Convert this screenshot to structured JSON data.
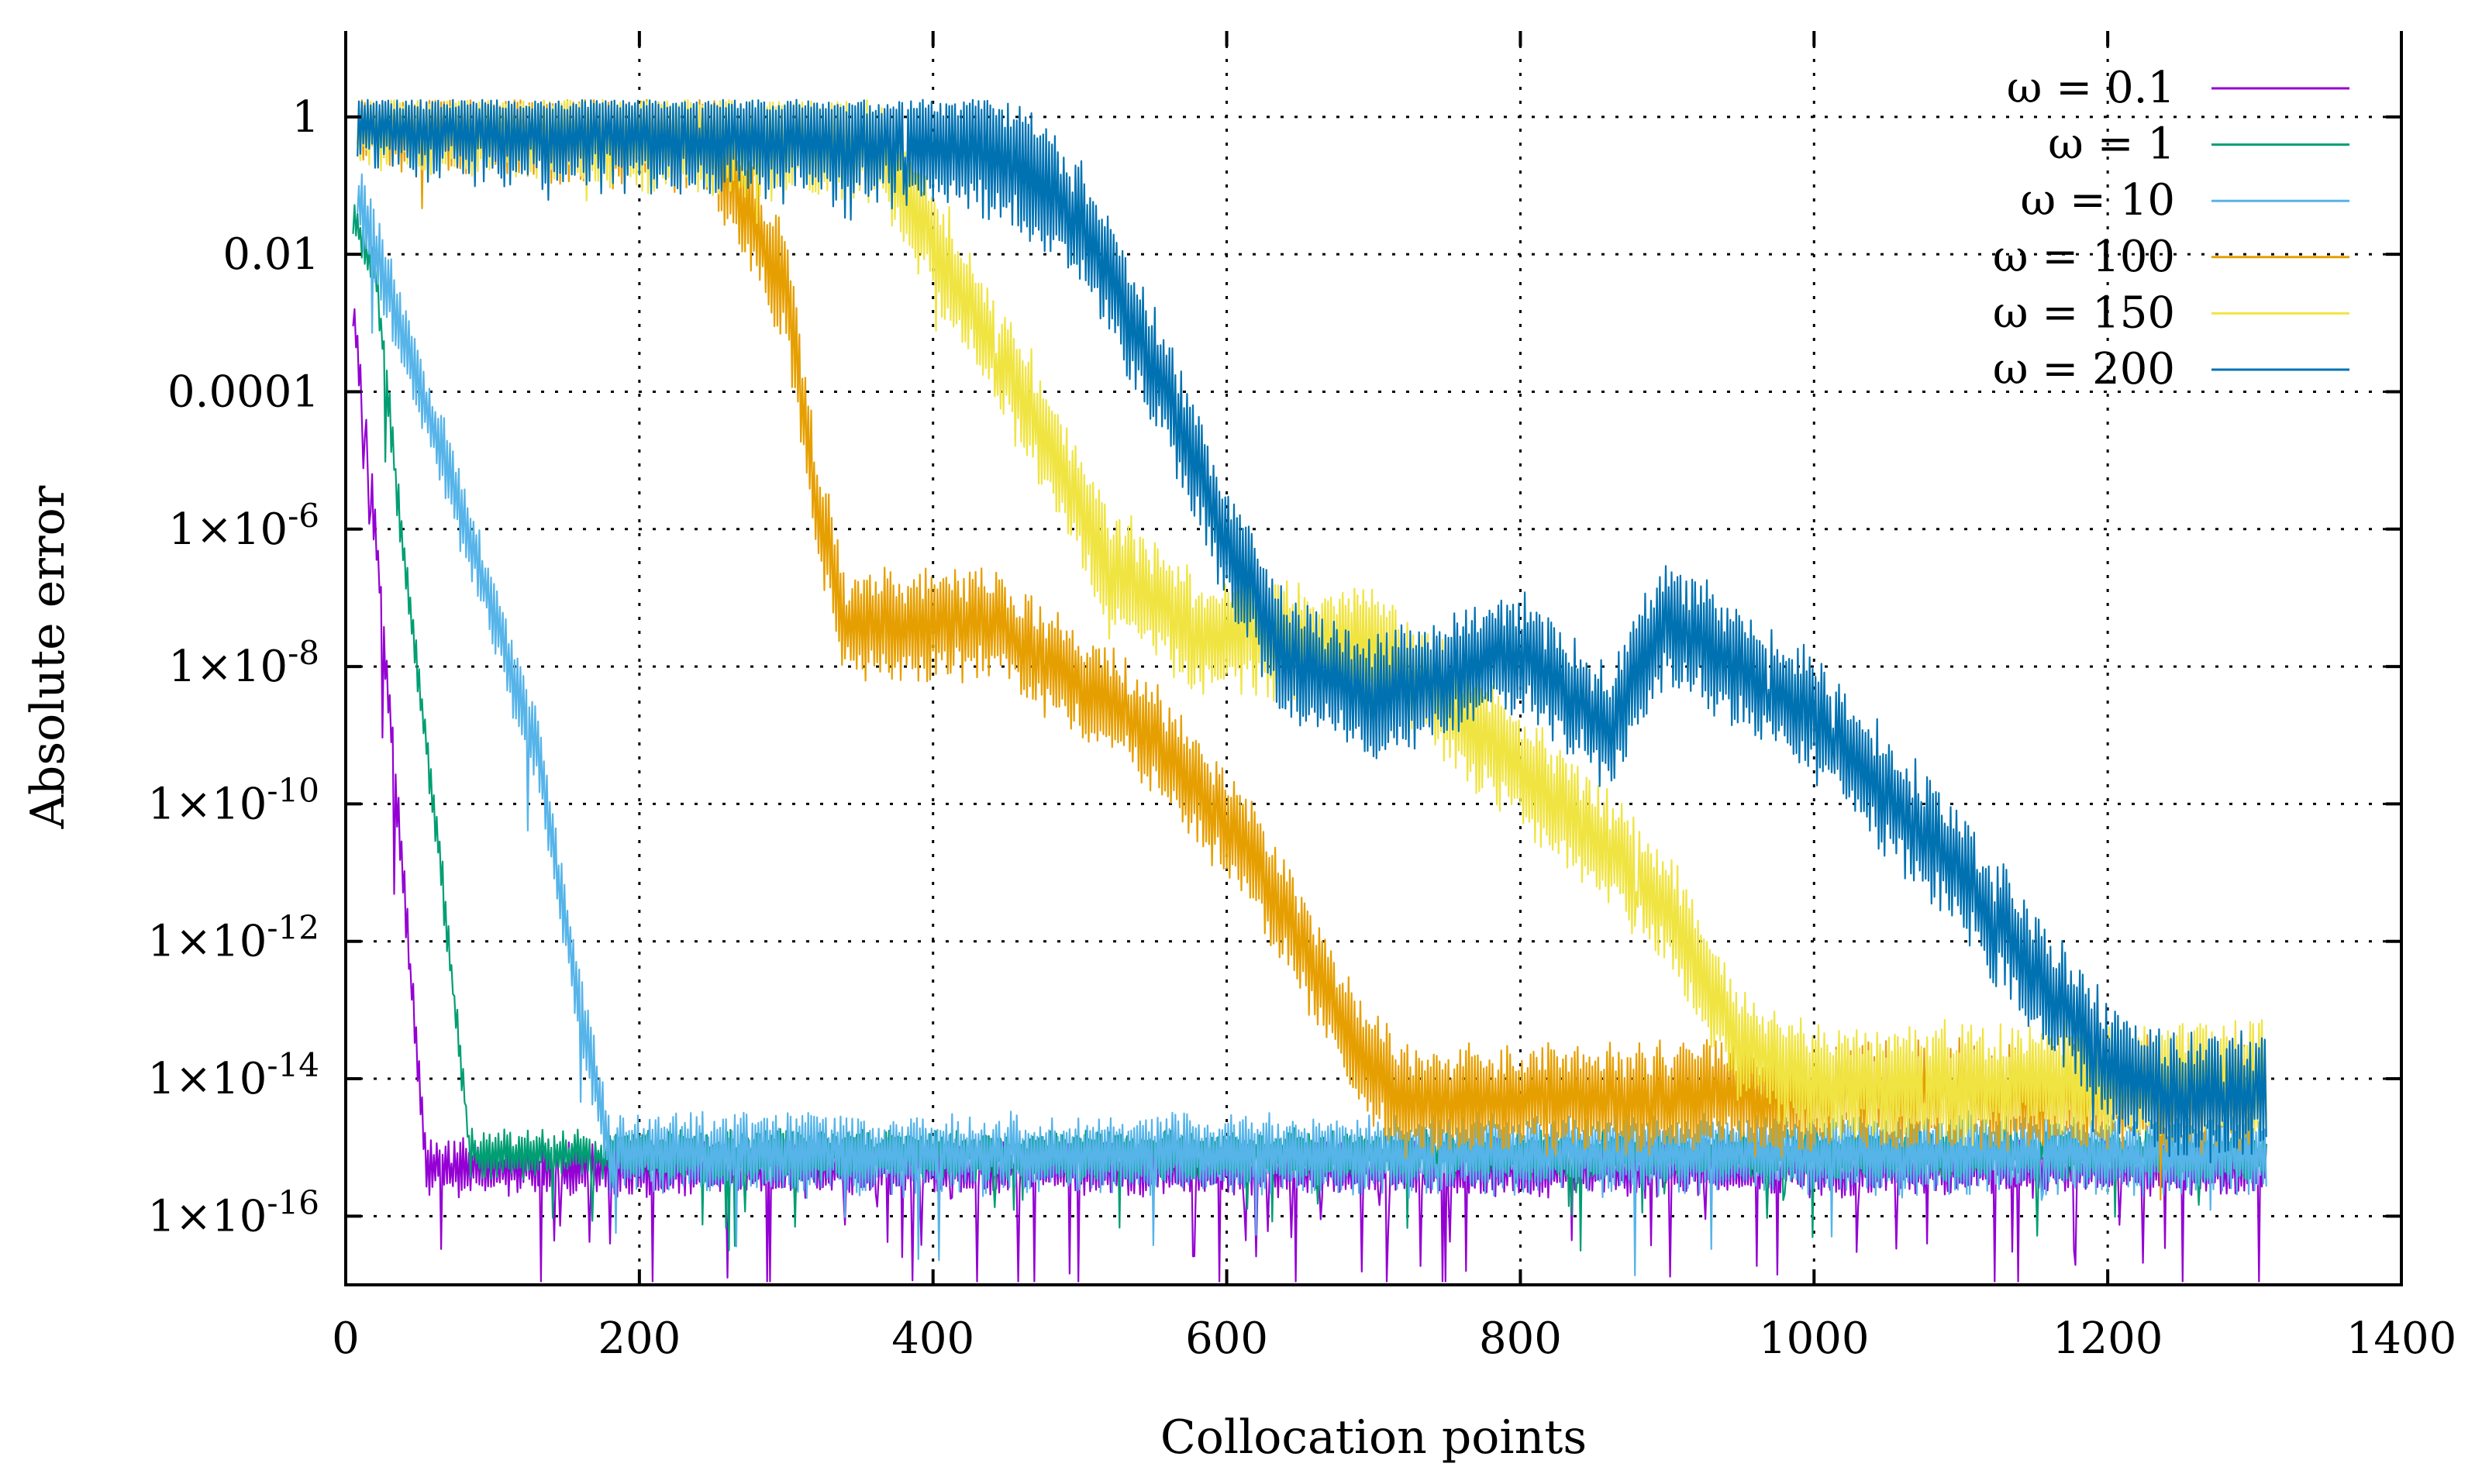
{
  "chart_data": {
    "type": "line",
    "title": "",
    "xlabel": "Collocation points",
    "ylabel": "Absolute error",
    "xlim": [
      0,
      1400
    ],
    "ylim_log10": [
      -17,
      1.25
    ],
    "yscale": "log",
    "grid": true,
    "legend_position": "top-right",
    "x_ticks": [
      {
        "value": 0,
        "label": "0"
      },
      {
        "value": 200,
        "label": "200"
      },
      {
        "value": 400,
        "label": "400"
      },
      {
        "value": 600,
        "label": "600"
      },
      {
        "value": 800,
        "label": "800"
      },
      {
        "value": 1000,
        "label": "1000"
      },
      {
        "value": 1200,
        "label": "1200"
      },
      {
        "value": 1400,
        "label": "1400"
      }
    ],
    "y_ticks": [
      {
        "log10": 0,
        "base": "1",
        "exp": ""
      },
      {
        "log10": -2,
        "base": "0.01",
        "exp": ""
      },
      {
        "log10": -4,
        "base": "0.0001",
        "exp": ""
      },
      {
        "log10": -6,
        "base": "1×10",
        "exp": "-6"
      },
      {
        "log10": -8,
        "base": "1×10",
        "exp": "-8"
      },
      {
        "log10": -10,
        "base": "1×10",
        "exp": "-10"
      },
      {
        "log10": -12,
        "base": "1×10",
        "exp": "-12"
      },
      {
        "log10": -14,
        "base": "1×10",
        "exp": "-14"
      },
      {
        "log10": -16,
        "base": "1×10",
        "exp": "-16"
      }
    ],
    "series": [
      {
        "name": "ω = 0.1",
        "color": "#9400d3",
        "x_end": 1308,
        "envelope": [
          [
            5,
            -2.8
          ],
          [
            20,
            -6
          ],
          [
            35,
            -10
          ],
          [
            50,
            -14
          ],
          [
            55,
            -15.3
          ],
          [
            1308,
            -15.3
          ]
        ],
        "noise_amp": 0.35,
        "dip_prob": 0.3,
        "dip_depth": 1.3,
        "seed": 11
      },
      {
        "name": "ω = 1",
        "color": "#009e73",
        "x_end": 1308,
        "envelope": [
          [
            5,
            -1.5
          ],
          [
            20,
            -2.2
          ],
          [
            40,
            -6.5
          ],
          [
            60,
            -10
          ],
          [
            85,
            -15.1
          ],
          [
            1308,
            -15.1
          ]
        ],
        "noise_amp": 0.3,
        "dip_prob": 0.12,
        "dip_depth": 0.8,
        "seed": 23
      },
      {
        "name": "ω = 10",
        "color": "#56b4e9",
        "x_end": 1308,
        "envelope": [
          [
            8,
            -1.1
          ],
          [
            15,
            -1.6
          ],
          [
            60,
            -4.5
          ],
          [
            90,
            -6.5
          ],
          [
            130,
            -9.2
          ],
          [
            160,
            -13
          ],
          [
            180,
            -15.1
          ],
          [
            1308,
            -15.1
          ]
        ],
        "noise_amp": 0.55,
        "dip_prob": 0.12,
        "dip_depth": 0.8,
        "seed": 37
      },
      {
        "name": "ω = 100",
        "color": "#e69f00",
        "x_end": 1308,
        "envelope": [
          [
            8,
            0.05
          ],
          [
            250,
            -0.35
          ],
          [
            300,
            -2.5
          ],
          [
            320,
            -5.5
          ],
          [
            340,
            -7.4
          ],
          [
            440,
            -7.4
          ],
          [
            540,
            -8.8
          ],
          [
            620,
            -10.8
          ],
          [
            690,
            -13.6
          ],
          [
            720,
            -14.3
          ],
          [
            1308,
            -14.2
          ]
        ],
        "noise_amp": 0.8,
        "dip_prob": 0.06,
        "dip_depth": 0.6,
        "seed": 59
      },
      {
        "name": "ω = 150",
        "color": "#f0e442",
        "x_end": 1308,
        "envelope": [
          [
            8,
            0.05
          ],
          [
            360,
            -0.4
          ],
          [
            400,
            -1.8
          ],
          [
            480,
            -4.8
          ],
          [
            520,
            -6.5
          ],
          [
            580,
            -7.5
          ],
          [
            700,
            -7.7
          ],
          [
            800,
            -9.5
          ],
          [
            900,
            -11.5
          ],
          [
            950,
            -13.5
          ],
          [
            1000,
            -14.1
          ],
          [
            1308,
            -14.0
          ]
        ],
        "noise_amp": 0.85,
        "dip_prob": 0.05,
        "dip_depth": 0.5,
        "seed": 71
      },
      {
        "name": "ω = 200",
        "color": "#0072b2",
        "x_end": 1308,
        "envelope": [
          [
            8,
            0.05
          ],
          [
            300,
            -0.3
          ],
          [
            400,
            -0.4
          ],
          [
            450,
            -0.6
          ],
          [
            500,
            -1.5
          ],
          [
            560,
            -4
          ],
          [
            600,
            -6.2
          ],
          [
            640,
            -7.9
          ],
          [
            700,
            -8.4
          ],
          [
            800,
            -7.8
          ],
          [
            860,
            -8.9
          ],
          [
            900,
            -7.3
          ],
          [
            1000,
            -8.7
          ],
          [
            1100,
            -11
          ],
          [
            1200,
            -13.8
          ],
          [
            1250,
            -14.3
          ],
          [
            1308,
            -14.2
          ]
        ],
        "noise_amp": 0.9,
        "dip_prob": 0.05,
        "dip_depth": 0.5,
        "seed": 97
      }
    ]
  }
}
